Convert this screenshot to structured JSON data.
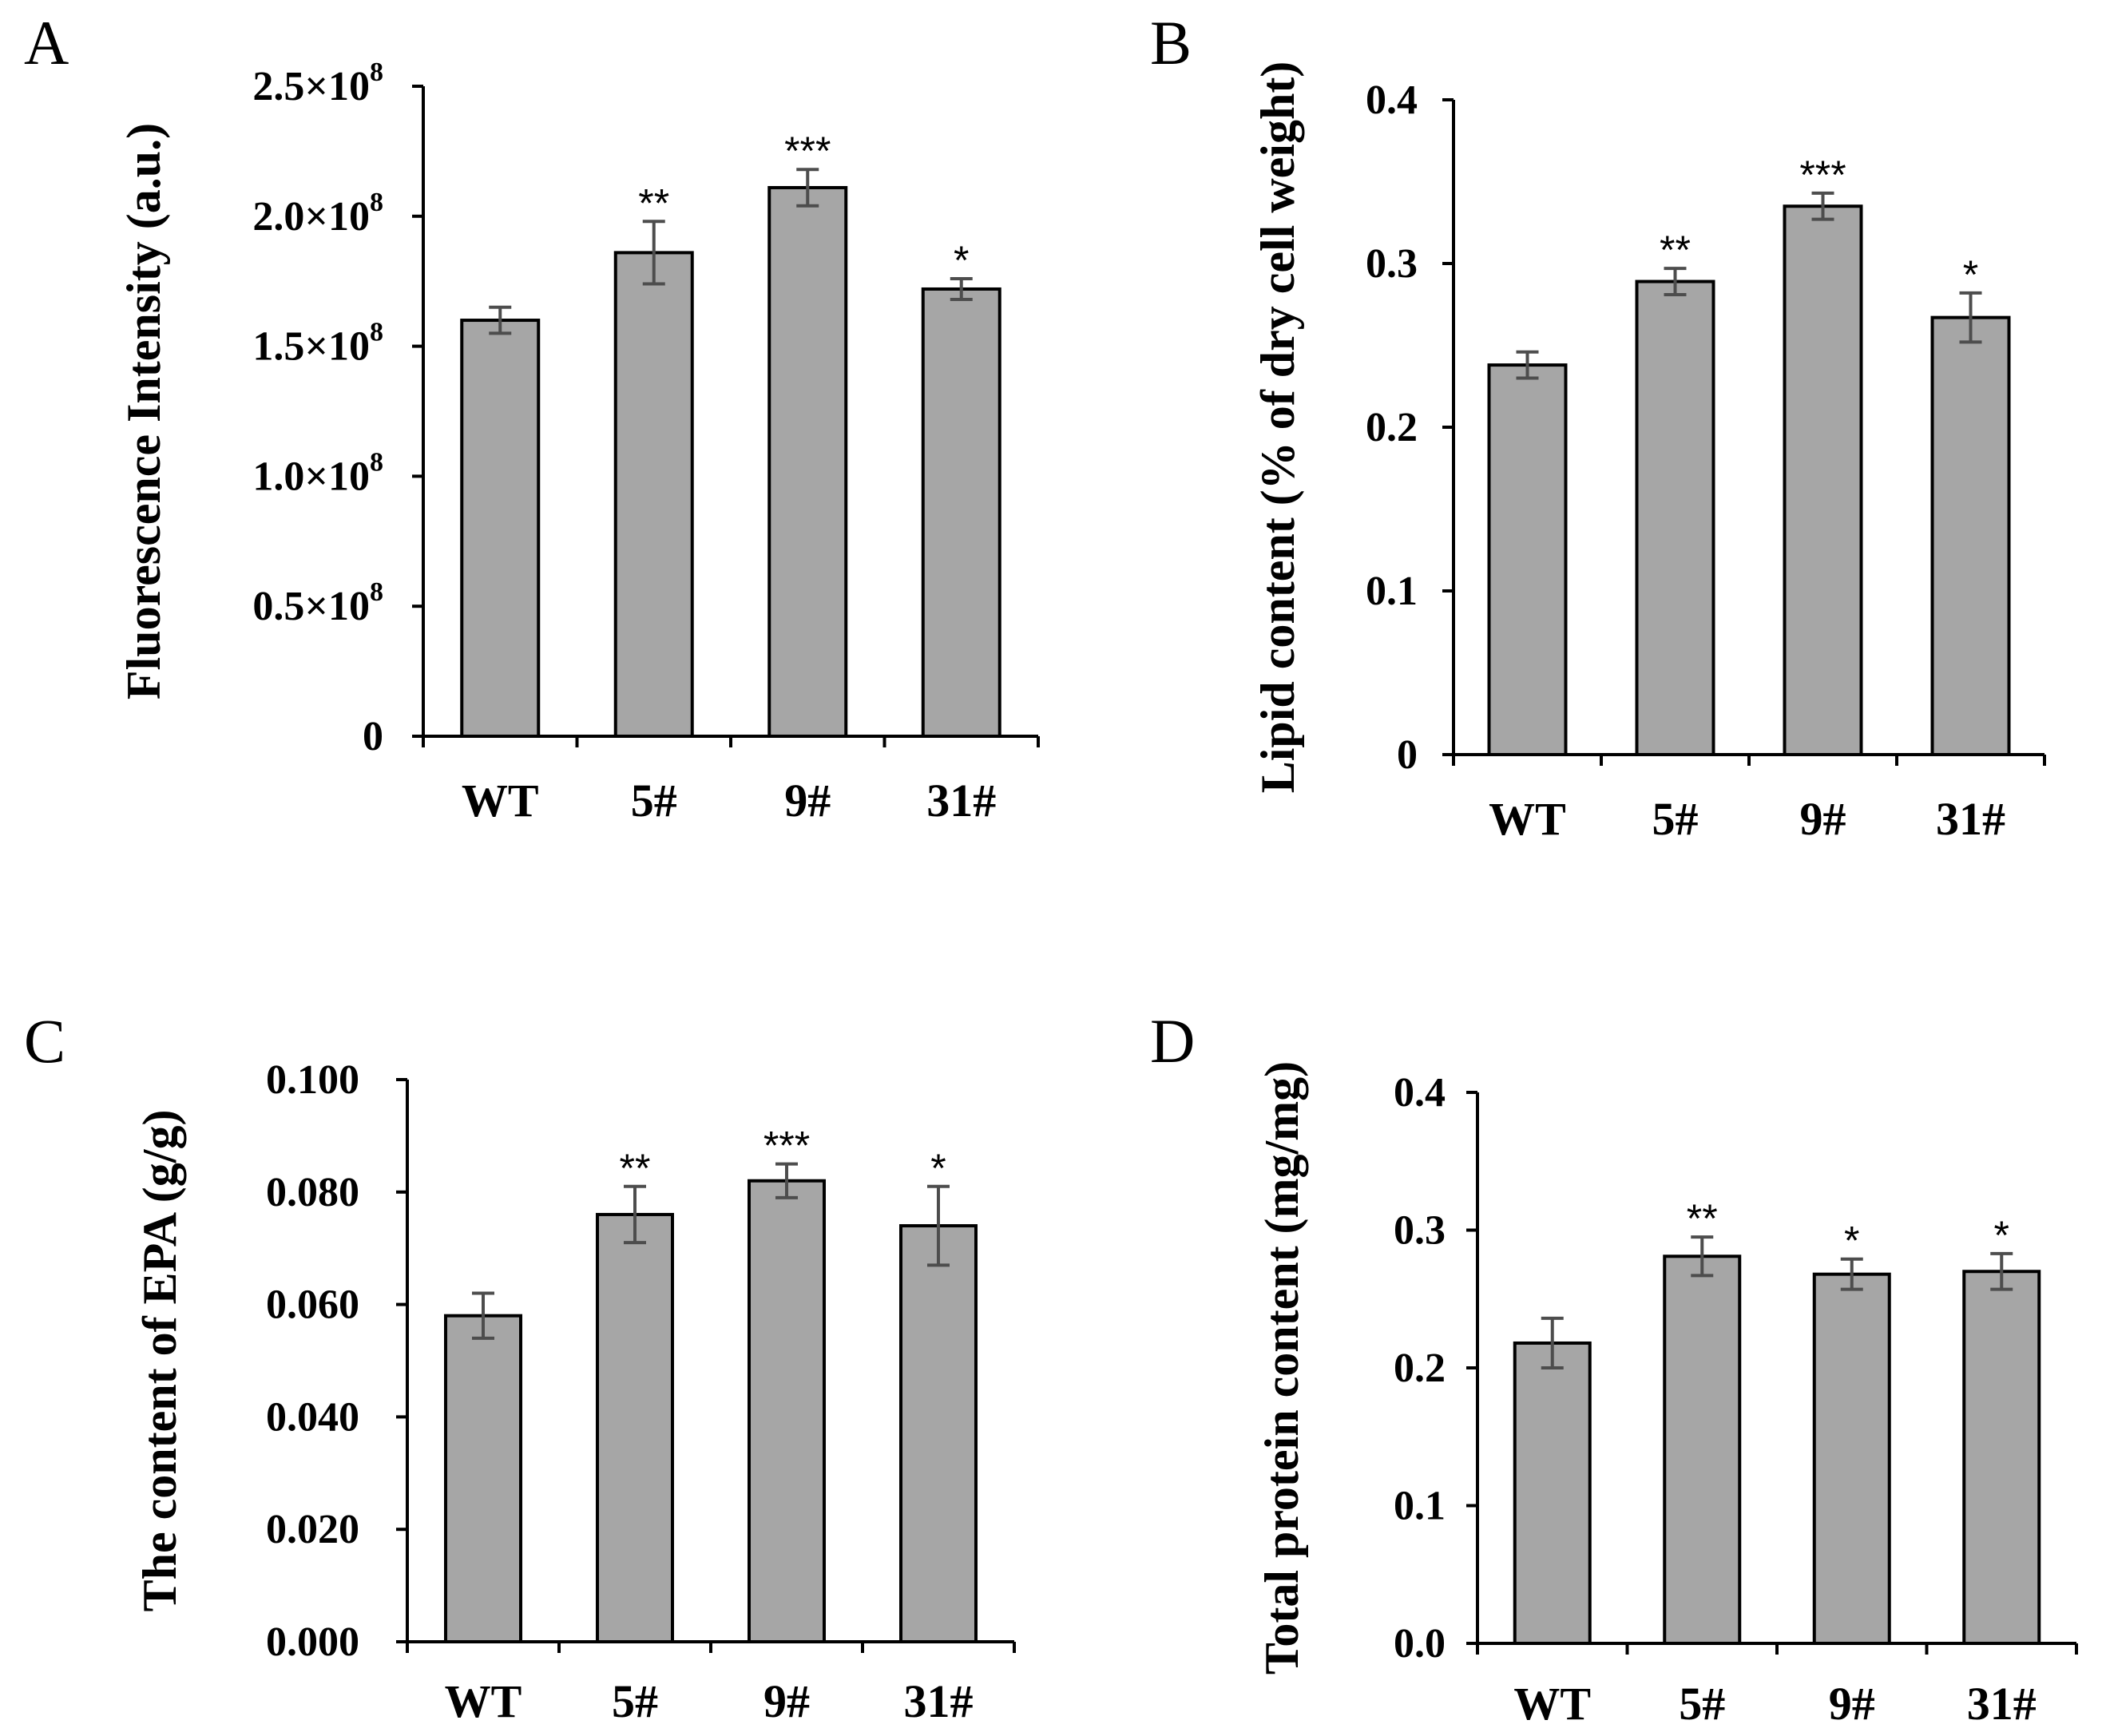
{
  "chart_data": [
    {
      "panel": "A",
      "type": "bar",
      "categories": [
        "WT",
        "5#",
        "9#",
        "31#"
      ],
      "values": [
        160000000.0,
        186000000.0,
        211000000.0,
        172000000.0
      ],
      "errors": [
        5000000.0,
        12000000.0,
        7000000.0,
        4000000.0
      ],
      "significance": [
        "",
        "**",
        "***",
        "*"
      ],
      "ylabel": "Fluorescence  Intensity (a.u.)",
      "ylim": [
        0,
        250000000.0
      ],
      "yticks": [
        0,
        50000000.0,
        100000000.0,
        150000000.0,
        200000000.0,
        250000000.0
      ],
      "ytick_labels": [
        "0",
        "0.5×10^8",
        "1.0×10^8",
        "1.5×10^8",
        "2.0×10^8",
        "2.5×10^8"
      ],
      "bar_color": "#a6a6a6",
      "grid": false
    },
    {
      "panel": "B",
      "type": "bar",
      "categories": [
        "WT",
        "5#",
        "9#",
        "31#"
      ],
      "values": [
        0.238,
        0.289,
        0.335,
        0.267
      ],
      "errors": [
        0.008,
        0.008,
        0.008,
        0.015
      ],
      "significance": [
        "",
        "**",
        "***",
        "*"
      ],
      "ylabel": "Lipid  content (% of dry cell weight)",
      "ylim": [
        0,
        0.4
      ],
      "yticks": [
        0,
        0.1,
        0.2,
        0.3,
        0.4
      ],
      "ytick_labels": [
        "0",
        "0.1",
        "0.2",
        "0.3",
        "0.4"
      ],
      "bar_color": "#a6a6a6",
      "grid": false
    },
    {
      "panel": "C",
      "type": "bar",
      "categories": [
        "WT",
        "5#",
        "9#",
        "31#"
      ],
      "values": [
        0.058,
        0.076,
        0.082,
        0.074
      ],
      "errors": [
        0.004,
        0.005,
        0.003,
        0.007
      ],
      "significance": [
        "",
        "**",
        "***",
        "*"
      ],
      "ylabel": "The content of EPA (g/g)",
      "ylim": [
        0,
        0.1
      ],
      "yticks": [
        0,
        0.02,
        0.04,
        0.06,
        0.08,
        0.1
      ],
      "ytick_labels": [
        "0.000",
        "0.020",
        "0.040",
        "0.060",
        "0.080",
        "0.100"
      ],
      "bar_color": "#a6a6a6",
      "grid": false
    },
    {
      "panel": "D",
      "type": "bar",
      "categories": [
        "WT",
        "5#",
        "9#",
        "31#"
      ],
      "values": [
        0.218,
        0.281,
        0.268,
        0.27
      ],
      "errors": [
        0.018,
        0.014,
        0.011,
        0.013
      ],
      "significance": [
        "",
        "**",
        "*",
        "*"
      ],
      "ylabel": "Total protein content (mg/mg)",
      "ylim": [
        0,
        0.4
      ],
      "yticks": [
        0,
        0.1,
        0.2,
        0.3,
        0.4
      ],
      "ytick_labels": [
        "0.0",
        "0.1",
        "0.2",
        "0.3",
        "0.4"
      ],
      "bar_color": "#a6a6a6",
      "grid": false
    }
  ]
}
